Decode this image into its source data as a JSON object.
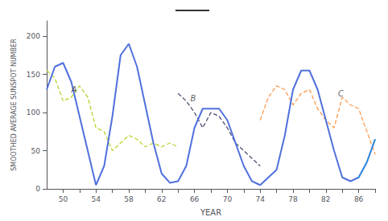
{
  "chart_data": {
    "type": "line",
    "xlabel": "YEAR",
    "ylabel": "SMOOTHED AVERAGE SUNSPOT NUMBER",
    "xlim": [
      48,
      88
    ],
    "ylim": [
      0,
      220
    ],
    "xticks": [
      50,
      {
        "value": 52,
        "label": null
      },
      54,
      {
        "value": 56,
        "label": null
      },
      58,
      {
        "value": 60,
        "label": null
      },
      62,
      {
        "value": 64,
        "label": null
      },
      66,
      {
        "value": 68,
        "label": null
      },
      70,
      {
        "value": 72,
        "label": null
      },
      74,
      {
        "value": 76,
        "label": null
      },
      78,
      {
        "value": 80,
        "label": null
      },
      82,
      {
        "value": 84,
        "label": null
      },
      86,
      {
        "value": 88,
        "label": null
      }
    ],
    "yticks": [
      0,
      50,
      100,
      150,
      200
    ],
    "grid": false,
    "series": [
      {
        "line_style": "solid",
        "x": [
          48,
          49,
          50,
          51,
          52,
          53,
          54,
          55,
          56,
          57,
          58,
          59,
          60,
          61,
          62,
          63,
          64,
          65,
          66,
          67,
          68,
          69,
          70,
          71,
          72,
          73,
          74,
          75,
          76,
          77,
          78,
          79,
          80,
          81,
          82,
          83,
          84,
          85,
          86,
          87,
          88
        ],
        "values": [
          130,
          160,
          165,
          140,
          95,
          50,
          5,
          30,
          95,
          175,
          190,
          160,
          110,
          60,
          20,
          8,
          10,
          30,
          80,
          105,
          105,
          105,
          90,
          60,
          30,
          10,
          5,
          15,
          25,
          70,
          130,
          155,
          155,
          130,
          90,
          50,
          15,
          10,
          15,
          35,
          65
        ]
      },
      {
        "line_style": "dashed",
        "x": [
          48,
          49,
          50,
          51,
          52,
          53,
          54,
          55,
          56,
          57,
          58,
          59,
          60,
          61,
          62,
          63,
          64
        ],
        "values": [
          155,
          145,
          115,
          120,
          135,
          120,
          80,
          75,
          50,
          60,
          70,
          65,
          55,
          60,
          55,
          60,
          55
        ]
      },
      {
        "line_style": "dashed",
        "x": [
          64,
          65,
          66,
          67,
          68,
          69,
          70,
          71,
          72,
          73,
          74
        ],
        "values": [
          125,
          115,
          100,
          80,
          100,
          95,
          80,
          60,
          50,
          40,
          30
        ]
      },
      {
        "line_style": "dashed",
        "x": [
          74,
          75,
          76,
          77,
          78,
          79,
          80,
          81,
          82,
          83,
          84,
          85,
          86,
          87,
          88
        ],
        "values": [
          90,
          120,
          135,
          130,
          110,
          125,
          130,
          105,
          90,
          80,
          120,
          110,
          105,
          75,
          45
        ]
      },
      {
        "line_style": "dotted",
        "x": [
          86,
          87,
          88
        ],
        "values": [
          15,
          35,
          65
        ]
      }
    ],
    "annotations": [
      {
        "text": "A",
        "x": 51,
        "y": 130
      },
      {
        "text": "B",
        "x": 65.5,
        "y": 118
      },
      {
        "text": "C",
        "x": 83.5,
        "y": 125
      }
    ]
  }
}
